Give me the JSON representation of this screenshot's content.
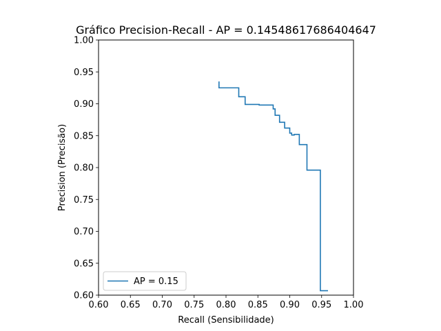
{
  "chart_data": {
    "type": "line",
    "title": "Gráfico Precision-Recall - AP = 0.14548617686404647",
    "xlabel": "Recall (Sensibilidade)",
    "ylabel": "Precision (Precisão)",
    "xlim": [
      0.6,
      1.0
    ],
    "ylim": [
      0.6,
      1.0
    ],
    "xticks": [
      0.6,
      0.65,
      0.7,
      0.75,
      0.8,
      0.85,
      0.9,
      0.95,
      1.0
    ],
    "xtick_labels": [
      "0.60",
      "0.65",
      "0.70",
      "0.75",
      "0.80",
      "0.85",
      "0.90",
      "0.95",
      "1.00"
    ],
    "yticks": [
      0.6,
      0.65,
      0.7,
      0.75,
      0.8,
      0.85,
      0.9,
      0.95,
      1.0
    ],
    "ytick_labels": [
      "0.60",
      "0.65",
      "0.70",
      "0.75",
      "0.80",
      "0.85",
      "0.90",
      "0.95",
      "1.00"
    ],
    "grid": false,
    "legend_position": "lower-left",
    "step": "post",
    "series": [
      {
        "name": "AP = 0.15",
        "color": "#1f77b4",
        "x": [
          0.789,
          0.789,
          0.82,
          0.82,
          0.83,
          0.83,
          0.852,
          0.852,
          0.874,
          0.874,
          0.877,
          0.877,
          0.884,
          0.884,
          0.892,
          0.892,
          0.9,
          0.9,
          0.903,
          0.903,
          0.907,
          0.907,
          0.915,
          0.915,
          0.927,
          0.927,
          0.948,
          0.948,
          0.96
        ],
        "y": [
          0.935,
          0.925,
          0.925,
          0.911,
          0.911,
          0.899,
          0.899,
          0.898,
          0.898,
          0.892,
          0.892,
          0.882,
          0.882,
          0.871,
          0.871,
          0.862,
          0.862,
          0.854,
          0.854,
          0.851,
          0.851,
          0.852,
          0.852,
          0.836,
          0.836,
          0.796,
          0.796,
          0.607,
          0.607
        ]
      }
    ]
  }
}
